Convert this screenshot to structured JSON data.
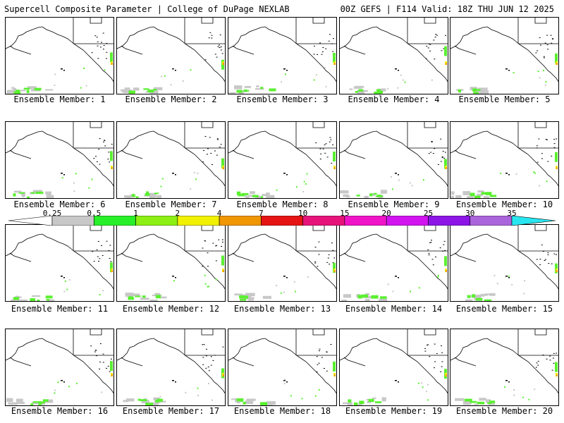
{
  "header": {
    "title_left": "Supercell Composite Parameter | College of DuPage NEXLAB",
    "title_right": "00Z GEFS | F114 Valid: 18Z THU JUN 12 2025"
  },
  "panel_label_prefix": "Ensemble Member: ",
  "members": [
    1,
    2,
    3,
    4,
    5,
    6,
    7,
    8,
    9,
    10,
    11,
    12,
    13,
    14,
    15,
    16,
    17,
    18,
    19,
    20
  ],
  "colorbar": {
    "ticks": [
      "0.25",
      "0.5",
      "1",
      "2",
      "4",
      "7",
      "10",
      "15",
      "20",
      "25",
      "30",
      "35"
    ],
    "colors": [
      "#c8c8c8",
      "#28f028",
      "#8cf014",
      "#f0f000",
      "#f09600",
      "#e61414",
      "#e6147a",
      "#f014c8",
      "#d214f0",
      "#8c14e6",
      "#aa64dc",
      "#28e6f0"
    ]
  },
  "map_colors": {
    "coast": "#000000",
    "low": "#c8c8c8",
    "mid": "#5af030",
    "high": "#f0f000",
    "extreme": "#f09600"
  }
}
